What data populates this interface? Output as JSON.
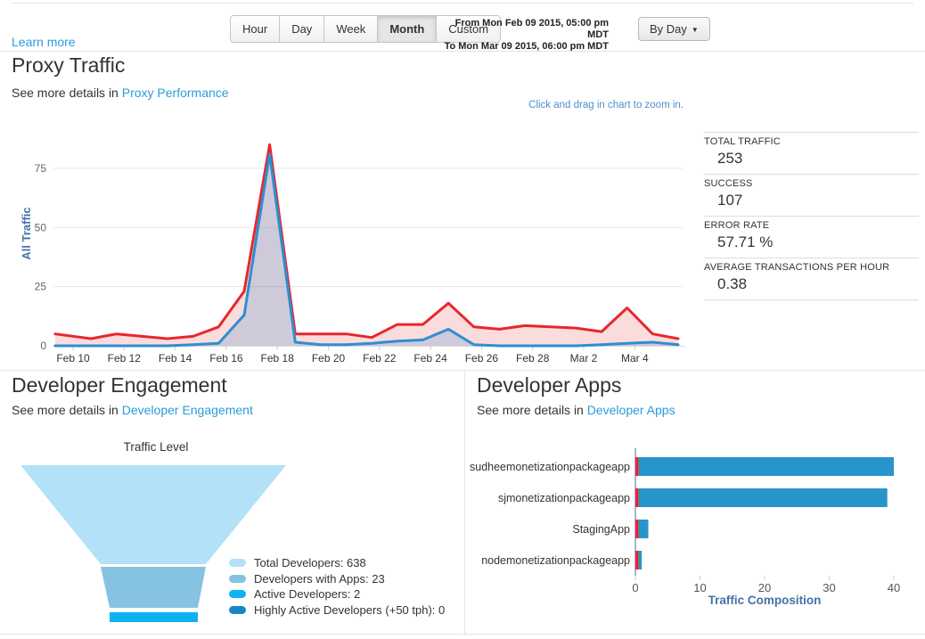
{
  "header": {
    "learn_more_label": "Learn more",
    "time_range_buttons": [
      "Hour",
      "Day",
      "Week",
      "Month",
      "Custom"
    ],
    "active_time_range": "Month",
    "date_from": "From Mon Feb 09 2015, 05:00 pm MDT",
    "date_to": "To Mon Mar 09 2015, 06:00 pm MDT",
    "granularity_label": "By Day",
    "caret_icon": "▼"
  },
  "proxy_traffic": {
    "title": "Proxy Traffic",
    "subtitle_prefix": "See more details in ",
    "subtitle_link": "Proxy Performance",
    "zoom_hint": "Click and drag in chart to zoom in.",
    "stats": [
      {
        "label": "TOTAL TRAFFIC",
        "value": "253"
      },
      {
        "label": "SUCCESS",
        "value": "107"
      },
      {
        "label": "ERROR RATE",
        "value": "57.71 %"
      },
      {
        "label": "AVERAGE TRANSACTIONS PER HOUR",
        "value": "0.38"
      }
    ]
  },
  "developer_engagement": {
    "title": "Developer Engagement",
    "subtitle_prefix": "See more details in ",
    "subtitle_link": "Developer Engagement"
  },
  "developer_apps": {
    "title": "Developer Apps",
    "subtitle_prefix": "See more details in ",
    "subtitle_link": "Developer Apps"
  },
  "colors": {
    "link_blue": "#2b9cd8",
    "traffic_red": "#e8262d",
    "success_blue": "#2d8fd0",
    "axis_label_blue": "#4572a7",
    "bar_blue": "#2794cc",
    "grid_gray": "#e6e6e6"
  },
  "chart_data": [
    {
      "id": "proxy_traffic",
      "type": "area",
      "ylabel": "All Traffic",
      "yticks": [
        0,
        25,
        50,
        75
      ],
      "ylim": [
        0,
        90
      ],
      "grid": "horizontal",
      "xtick_labels": [
        "Feb 10",
        "Feb 12",
        "Feb 14",
        "Feb 16",
        "Feb 18",
        "Feb 20",
        "Feb 22",
        "Feb 24",
        "Feb 26",
        "Feb 28",
        "Mar 2",
        "Mar 4"
      ],
      "x_days_from_feb10": [
        -0.7,
        0.7,
        1.7,
        2.7,
        3.7,
        4.7,
        5.7,
        6.7,
        7.7,
        8.7,
        9.7,
        10.7,
        11.7,
        12.7,
        13.7,
        14.7,
        15.7,
        16.7,
        17.7,
        18.7,
        19.7,
        20.7,
        21.7,
        22.7,
        23.7
      ],
      "series": [
        {
          "name": "All Traffic",
          "color": "#e8262d",
          "fill": "rgba(232,38,45,0.16)",
          "values": [
            5,
            3,
            5,
            4,
            3,
            4,
            8,
            23,
            85,
            5,
            5,
            5,
            3.5,
            9,
            9,
            18,
            8,
            7,
            8.5,
            8,
            7.5,
            6,
            16,
            5,
            3
          ]
        },
        {
          "name": "Success",
          "color": "#2d8fd0",
          "fill": "rgba(45,143,208,0.22)",
          "values": [
            0,
            0,
            0,
            0,
            0,
            0.5,
            1,
            13,
            81,
            1.5,
            0.5,
            0.5,
            1,
            2,
            2.5,
            7,
            0.5,
            0,
            0,
            0,
            0,
            0.5,
            1,
            1.5,
            0.5
          ]
        }
      ]
    },
    {
      "id": "developer_engagement_funnel",
      "type": "funnel",
      "title": "Traffic Level",
      "legend_position": "right",
      "segments": [
        {
          "label": "Total Developers",
          "value": 638,
          "color": "#b3e1f7"
        },
        {
          "label": "Developers with Apps",
          "value": 23,
          "color": "#86c3e2"
        },
        {
          "label": "Active Developers",
          "value": 2,
          "color": "#0cb3f2"
        },
        {
          "label": "Highly Active Developers (+50 tph)",
          "value": 0,
          "color": "#1787c9"
        }
      ]
    },
    {
      "id": "developer_apps_traffic",
      "type": "bar",
      "orientation": "horizontal",
      "categories": [
        "sudheemonetizationpackageapp",
        "sjmonetizationpackageapp",
        "StagingApp",
        "nodemonetizationpackageapp"
      ],
      "series": [
        {
          "name": "Error",
          "color": "#e8262d",
          "values": [
            0.5,
            0.5,
            0.5,
            0.5
          ]
        },
        {
          "name": "Traffic",
          "color": "#2794cc",
          "values": [
            39.5,
            38.5,
            1.5,
            0.5
          ]
        }
      ],
      "xticks": [
        0,
        10,
        20,
        30,
        40
      ],
      "xlim": [
        0,
        41
      ],
      "xlabel": "Traffic Composition"
    }
  ]
}
